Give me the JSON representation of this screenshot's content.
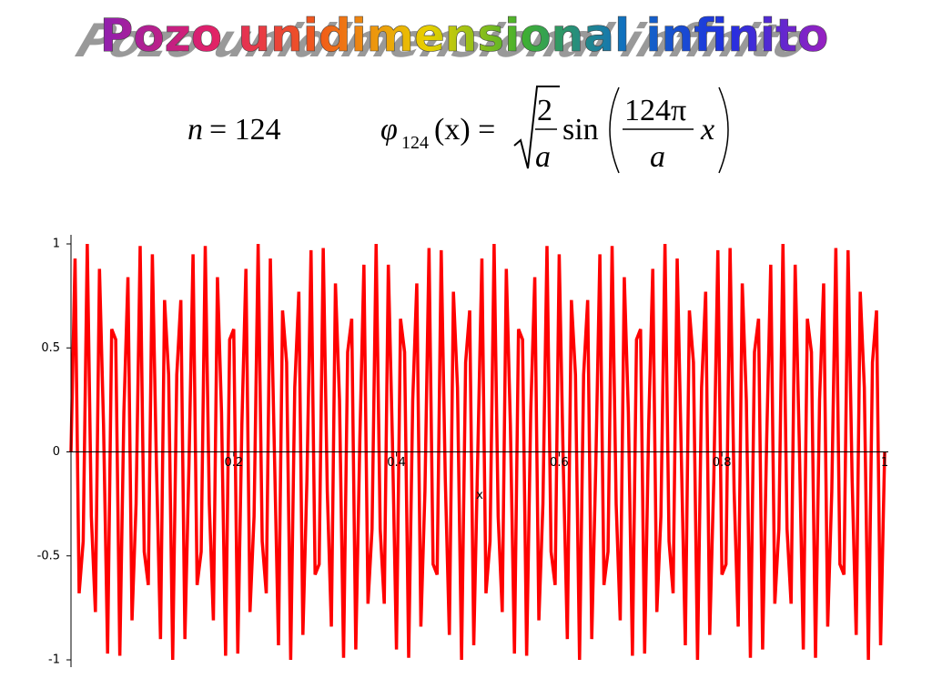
{
  "chart_data": {
    "type": "line",
    "title": "Pozo unidimensional infinito",
    "formula": {
      "n_var": "n",
      "n_value": "= 124",
      "phi": "φ",
      "subscript": "124",
      "arg": "(x) =",
      "sqrt_num": "2",
      "sqrt_den": "a",
      "func": "sin",
      "frac_num": "124π",
      "frac_den": "a",
      "tail": "x"
    },
    "x_label": "x",
    "color": "#ff0000",
    "xlim": [
      0,
      1
    ],
    "ylim": [
      -1,
      1
    ],
    "xticks": [
      0.2,
      0.4,
      0.6,
      0.8,
      1
    ],
    "yticks": [
      -1,
      -0.5,
      0,
      0.5,
      1
    ],
    "x": [
      0,
      0.005,
      0.01,
      0.015,
      0.02,
      0.025,
      0.03,
      0.035,
      0.04,
      0.045,
      0.05,
      0.055,
      0.06,
      0.065,
      0.07,
      0.075,
      0.08,
      0.085,
      0.09,
      0.095,
      0.1,
      0.105,
      0.11,
      0.115,
      0.12,
      0.125,
      0.13,
      0.135,
      0.14,
      0.145,
      0.15,
      0.155,
      0.16,
      0.165,
      0.17,
      0.175,
      0.18,
      0.185,
      0.19,
      0.195,
      0.2,
      0.205,
      0.21,
      0.215,
      0.22,
      0.225,
      0.23,
      0.235,
      0.24,
      0.245,
      0.25,
      0.255,
      0.26,
      0.265,
      0.27,
      0.275,
      0.28,
      0.285,
      0.29,
      0.295,
      0.3,
      0.305,
      0.31,
      0.315,
      0.32,
      0.325,
      0.33,
      0.335,
      0.34,
      0.345,
      0.35,
      0.355,
      0.36,
      0.365,
      0.37,
      0.375,
      0.38,
      0.385,
      0.39,
      0.395,
      0.4,
      0.405,
      0.41,
      0.415,
      0.42,
      0.425,
      0.43,
      0.435,
      0.44,
      0.445,
      0.45,
      0.455,
      0.46,
      0.465,
      0.47,
      0.475,
      0.48,
      0.485,
      0.49,
      0.495,
      0.5,
      0.505,
      0.51,
      0.515,
      0.52,
      0.525,
      0.53,
      0.535,
      0.54,
      0.545,
      0.55,
      0.555,
      0.56,
      0.565,
      0.57,
      0.575,
      0.58,
      0.585,
      0.59,
      0.595,
      0.6,
      0.605,
      0.61,
      0.615,
      0.62,
      0.625,
      0.63,
      0.635,
      0.64,
      0.645,
      0.65,
      0.655,
      0.66,
      0.665,
      0.67,
      0.675,
      0.68,
      0.685,
      0.69,
      0.695,
      0.7,
      0.705,
      0.71,
      0.715,
      0.72,
      0.725,
      0.73,
      0.735,
      0.74,
      0.745,
      0.75,
      0.755,
      0.76,
      0.765,
      0.77,
      0.775,
      0.78,
      0.785,
      0.79,
      0.795,
      0.8,
      0.805,
      0.81,
      0.815,
      0.82,
      0.825,
      0.83,
      0.835,
      0.84,
      0.845,
      0.85,
      0.855,
      0.86,
      0.865,
      0.87,
      0.875,
      0.88,
      0.885,
      0.89,
      0.895,
      0.9,
      0.905,
      0.91,
      0.915,
      0.92,
      0.925,
      0.93,
      0.935,
      0.94,
      0.945,
      0.95,
      0.955,
      0.96,
      0.965,
      0.97,
      0.975,
      0.98,
      0.985,
      0.99,
      0.995,
      1
    ],
    "values": [
      0,
      0.93,
      -0.68,
      -0.43,
      1,
      -0.31,
      -0.77,
      0.88,
      0.13,
      -0.97,
      0.59,
      0.54,
      -0.98,
      0.19,
      0.84,
      -0.81,
      -0.25,
      0.99,
      -0.48,
      -0.64,
      0.95,
      -0.06,
      -0.9,
      0.73,
      0.37,
      -1,
      0.37,
      0.73,
      -0.9,
      -0.06,
      0.95,
      -0.64,
      -0.48,
      0.99,
      -0.25,
      -0.81,
      0.84,
      0.19,
      -0.98,
      0.54,
      0.59,
      -0.97,
      0.13,
      0.88,
      -0.77,
      -0.31,
      1,
      -0.43,
      -0.68,
      0.93,
      0,
      -0.93,
      0.68,
      0.43,
      -1,
      0.31,
      0.77,
      -0.88,
      -0.13,
      0.97,
      -0.59,
      -0.54,
      0.98,
      -0.19,
      -0.84,
      0.81,
      0.25,
      -0.99,
      0.48,
      0.64,
      -0.95,
      0.06,
      0.9,
      -0.73,
      -0.37,
      1,
      -0.37,
      -0.73,
      0.9,
      0.06,
      -0.95,
      0.64,
      0.48,
      -0.99,
      0.25,
      0.81,
      -0.84,
      -0.19,
      0.98,
      -0.54,
      -0.59,
      0.97,
      -0.13,
      -0.88,
      0.77,
      0.31,
      -1,
      0.43,
      0.68,
      -0.93,
      0,
      0.93,
      -0.68,
      -0.43,
      1,
      -0.31,
      -0.77,
      0.88,
      0.13,
      -0.97,
      0.59,
      0.54,
      -0.98,
      0.19,
      0.84,
      -0.81,
      -0.25,
      0.99,
      -0.48,
      -0.64,
      0.95,
      -0.06,
      -0.9,
      0.73,
      0.37,
      -1,
      0.37,
      0.73,
      -0.9,
      -0.06,
      0.95,
      -0.64,
      -0.48,
      0.99,
      -0.25,
      -0.81,
      0.84,
      0.19,
      -0.98,
      0.54,
      0.59,
      -0.97,
      0.13,
      0.88,
      -0.77,
      -0.31,
      1,
      -0.43,
      -0.68,
      0.93,
      0,
      -0.93,
      0.68,
      0.43,
      -1,
      0.31,
      0.77,
      -0.88,
      -0.13,
      0.97,
      -0.59,
      -0.54,
      0.98,
      -0.19,
      -0.84,
      0.81,
      0.25,
      -0.99,
      0.48,
      0.64,
      -0.95,
      0.06,
      0.9,
      -0.73,
      -0.37,
      1,
      -0.37,
      -0.73,
      0.9,
      0.06,
      -0.95,
      0.64,
      0.48,
      -0.99,
      0.25,
      0.81,
      -0.84,
      -0.19,
      0.98,
      -0.54,
      -0.59,
      0.97,
      -0.13,
      -0.88,
      0.77,
      0.31,
      -1,
      0.43,
      0.68,
      -0.93,
      0
    ]
  }
}
